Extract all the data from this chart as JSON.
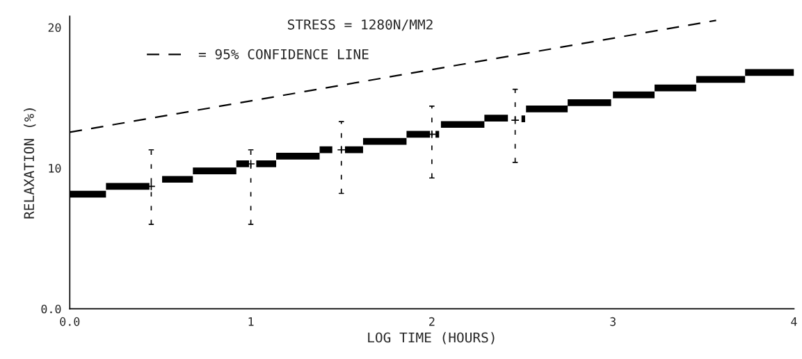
{
  "chart_data": {
    "type": "line",
    "xlabel": "LOG TIME (HOURS)",
    "ylabel": "RELAXATION (%)",
    "annotations": [
      "STRESS = 1280N/MM2"
    ],
    "xlim": [
      0,
      4
    ],
    "xticks": [
      {
        "value": 0,
        "label": "0.0"
      },
      1,
      2,
      3,
      4
    ],
    "ylim": [
      0,
      20.8
    ],
    "yticks": [
      {
        "value": 0,
        "label": "0.0"
      },
      10,
      20
    ],
    "grid": false,
    "legend": "top",
    "marker": "none",
    "series": [
      {
        "color": "#000000",
        "x": [
          0,
          0.2
        ],
        "values": [
          8.15,
          8.15
        ]
      },
      {
        "color": "#000000",
        "x": [
          0.2,
          0.44
        ],
        "values": [
          8.7,
          8.7
        ]
      },
      {
        "color": "#000000",
        "x": [
          0.51,
          0.68
        ],
        "values": [
          9.2,
          9.2
        ]
      },
      {
        "color": "#000000",
        "x": [
          0.68,
          0.92
        ],
        "values": [
          9.8,
          9.8
        ]
      },
      {
        "color": "#000000",
        "x": [
          0.92,
          0.99
        ],
        "values": [
          10.3,
          10.3
        ]
      },
      {
        "color": "#000000",
        "x": [
          1.03,
          1.14
        ],
        "values": [
          10.3,
          10.3
        ]
      },
      {
        "color": "#000000",
        "x": [
          1.14,
          1.38
        ],
        "values": [
          10.85,
          10.85
        ]
      },
      {
        "color": "#000000",
        "x": [
          1.38,
          1.45
        ],
        "values": [
          11.3,
          11.3
        ]
      },
      {
        "color": "#000000",
        "x": [
          1.52,
          1.62
        ],
        "values": [
          11.3,
          11.3
        ]
      },
      {
        "color": "#000000",
        "x": [
          1.62,
          1.86
        ],
        "values": [
          11.9,
          11.9
        ]
      },
      {
        "color": "#000000",
        "x": [
          1.86,
          1.99
        ],
        "values": [
          12.4,
          12.4
        ]
      },
      {
        "color": "#000000",
        "x": [
          2.02,
          2.04
        ],
        "values": [
          12.4,
          12.4
        ]
      },
      {
        "color": "#000000",
        "x": [
          2.05,
          2.29
        ],
        "values": [
          13.1,
          13.1
        ]
      },
      {
        "color": "#000000",
        "x": [
          2.29,
          2.42
        ],
        "values": [
          13.55,
          13.55
        ]
      },
      {
        "color": "#000000",
        "x": [
          2.495,
          2.515
        ],
        "values": [
          13.5,
          13.5
        ]
      },
      {
        "color": "#000000",
        "x": [
          2.52,
          2.75
        ],
        "values": [
          14.2,
          14.2
        ]
      },
      {
        "color": "#000000",
        "x": [
          2.75,
          2.99
        ],
        "values": [
          14.65,
          14.65
        ]
      },
      {
        "color": "#000000",
        "x": [
          3.0,
          3.23
        ],
        "values": [
          15.2,
          15.2
        ]
      },
      {
        "color": "#000000",
        "x": [
          3.23,
          3.46
        ],
        "values": [
          15.7,
          15.7
        ]
      },
      {
        "color": "#000000",
        "x": [
          3.46,
          3.73
        ],
        "values": [
          16.3,
          16.3
        ]
      },
      {
        "color": "#000000",
        "x": [
          3.73,
          4.0
        ],
        "values": [
          16.8,
          16.8
        ]
      },
      {
        "name": "= 95% CONFIDENCE LINE",
        "color": "#000000",
        "line_style": "dashed",
        "x": [
          0,
          3.57
        ],
        "values": [
          12.55,
          20.5
        ]
      },
      {
        "type": "scatter",
        "color": "#000000",
        "marker": "cross",
        "x": [
          0.45,
          1.0,
          1.5,
          2.0,
          2.46
        ],
        "values": [
          8.7,
          10.3,
          11.3,
          12.4,
          13.4
        ],
        "errors": [
          [
            6.0,
            11.3
          ],
          [
            6.0,
            11.3
          ],
          [
            8.2,
            13.3
          ],
          [
            9.3,
            14.4
          ],
          [
            10.4,
            15.6
          ]
        ]
      }
    ]
  }
}
